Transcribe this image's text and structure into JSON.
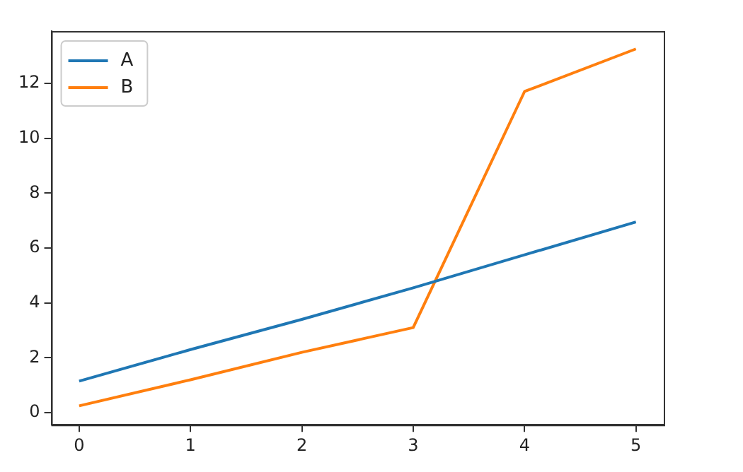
{
  "chart_data": {
    "type": "line",
    "x": [
      0,
      1,
      2,
      3,
      4,
      5
    ],
    "series": [
      {
        "name": "A",
        "color": "#1f77b4",
        "values": [
          1.15,
          2.3,
          3.4,
          4.55,
          5.75,
          6.95
        ]
      },
      {
        "name": "B",
        "color": "#ff7f0e",
        "values": [
          0.25,
          1.2,
          2.2,
          3.1,
          11.7,
          13.25
        ]
      }
    ],
    "xlim": [
      -0.25,
      5.25
    ],
    "xticks": [
      0,
      1,
      2,
      3,
      4,
      5
    ],
    "ylim": [
      -0.44,
      13.9
    ],
    "yticks": [
      0,
      2,
      4,
      6,
      8,
      10,
      12
    ],
    "grid": false,
    "legend": "top left",
    "marker": "none",
    "line_style": "solid"
  }
}
